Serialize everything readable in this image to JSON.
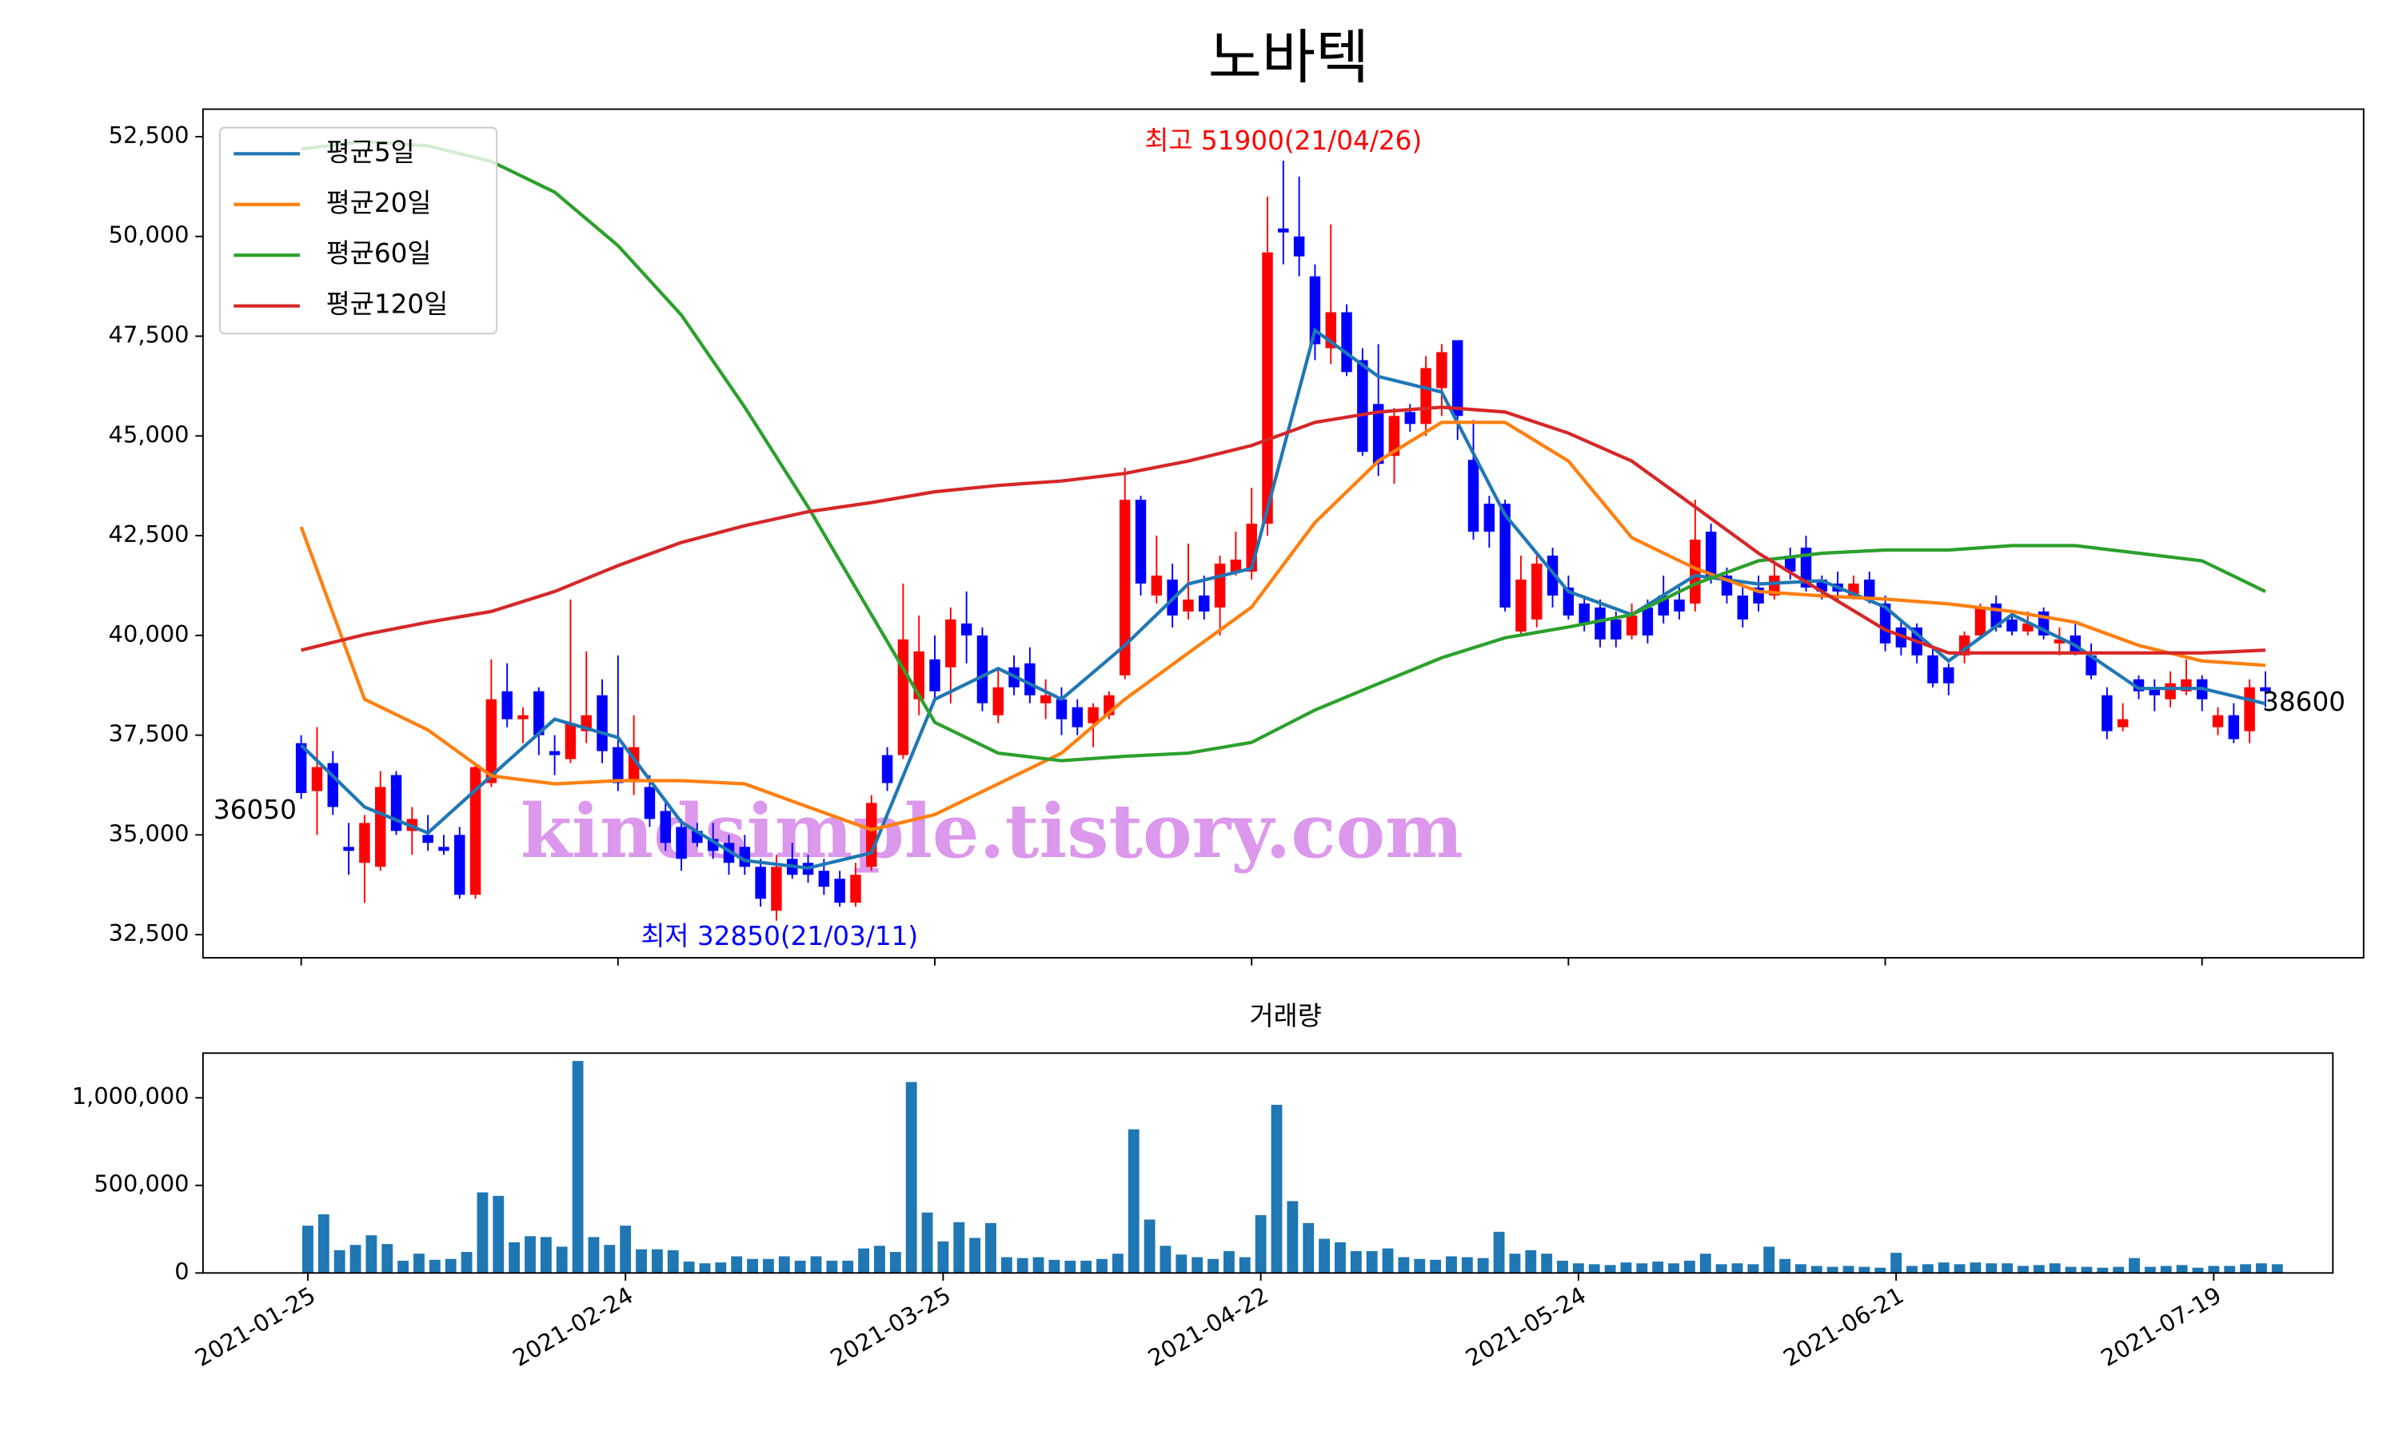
{
  "chart_data": [
    {
      "type": "candlestick",
      "title": "노바텍",
      "up_color": "#ff0000",
      "down_color": "#0000ff",
      "xlim": [
        -6.2,
        130.2
      ],
      "xticks": [
        0,
        20,
        40,
        60,
        80,
        100,
        120
      ],
      "ylim": [
        31920,
        53190
      ],
      "yticks": [
        {
          "value": 32500,
          "label": "32,500"
        },
        {
          "value": 35000,
          "label": "35,000"
        },
        {
          "value": 37500,
          "label": "37,500"
        },
        {
          "value": 40000,
          "label": "40,000"
        },
        {
          "value": 42500,
          "label": "42,500"
        },
        {
          "value": 45000,
          "label": "45,000"
        },
        {
          "value": 47500,
          "label": "47,500"
        },
        {
          "value": 50000,
          "label": "50,000"
        },
        {
          "value": 52500,
          "label": "52,500"
        }
      ],
      "open": [
        37300,
        36100,
        36800,
        34700,
        34300,
        34200,
        36500,
        35100,
        35000,
        34700,
        35000,
        33500,
        36300,
        38600,
        37900,
        38600,
        37100,
        36900,
        37600,
        38500,
        37200,
        36400,
        36200,
        35600,
        35200,
        35100,
        34900,
        34800,
        34700,
        34200,
        33100,
        34400,
        34300,
        34100,
        33900,
        33300,
        34200,
        37000,
        37000,
        38400,
        39400,
        39200,
        40300,
        40000,
        38000,
        39200,
        39300,
        38300,
        38400,
        38200,
        37800,
        38000,
        39000,
        43400,
        41000,
        41400,
        40600,
        41000,
        40700,
        41600,
        41600,
        42800,
        50200,
        50000,
        49000,
        47200,
        48100,
        46900,
        45800,
        44500,
        45600,
        45300,
        46200,
        47400,
        44400,
        43300,
        43300,
        40100,
        40400,
        42000,
        41200,
        40800,
        40700,
        40400,
        40000,
        40700,
        41000,
        40900,
        40800,
        42600,
        41500,
        41000,
        41200,
        41000,
        42000,
        42200,
        41400,
        41300,
        41000,
        41400,
        40800,
        40200,
        40200,
        39500,
        39200,
        39500,
        40000,
        40800,
        40400,
        40100,
        40600,
        39800,
        40000,
        39500,
        38500,
        37700,
        38900,
        38700,
        38400,
        38600,
        38900,
        37700,
        38000,
        37600,
        38700
      ],
      "high": [
        37500,
        37700,
        37100,
        35300,
        35500,
        36600,
        36600,
        35700,
        35500,
        35000,
        35200,
        36800,
        39400,
        39300,
        38200,
        38700,
        37500,
        40900,
        39600,
        38900,
        39500,
        38000,
        36500,
        35900,
        35400,
        35300,
        35300,
        35000,
        35000,
        34400,
        34500,
        34800,
        34500,
        34400,
        34100,
        34300,
        36000,
        37200,
        41300,
        40500,
        40000,
        40700,
        41100,
        40200,
        39200,
        39500,
        39700,
        38900,
        38700,
        38400,
        38300,
        38600,
        44200,
        43500,
        42500,
        41800,
        42300,
        41500,
        42000,
        42600,
        43700,
        51000,
        51900,
        51500,
        49300,
        50300,
        48300,
        47200,
        47300,
        45700,
        45800,
        47000,
        47300,
        47400,
        45400,
        43500,
        43400,
        42000,
        42000,
        42200,
        41500,
        41000,
        40900,
        40600,
        40800,
        40900,
        41500,
        41200,
        43400,
        42800,
        41700,
        41200,
        41500,
        41800,
        42200,
        42500,
        41500,
        41600,
        41500,
        41600,
        41000,
        40400,
        40300,
        39700,
        39300,
        40100,
        40800,
        41000,
        40600,
        40600,
        40700,
        40200,
        40300,
        39800,
        38700,
        38300,
        39000,
        38900,
        39100,
        39400,
        39000,
        38200,
        38300,
        38900,
        39100
      ],
      "low": [
        35900,
        35000,
        35500,
        34000,
        33300,
        34100,
        35000,
        34500,
        34600,
        34500,
        33400,
        33400,
        36200,
        37700,
        37300,
        37000,
        36500,
        36800,
        37300,
        36800,
        36100,
        36000,
        35200,
        34600,
        34100,
        34700,
        34400,
        34000,
        34000,
        33200,
        32850,
        33900,
        33800,
        33500,
        33200,
        33200,
        34100,
        36100,
        36900,
        38000,
        38400,
        38300,
        39300,
        38100,
        37800,
        38500,
        38300,
        37900,
        37500,
        37500,
        37200,
        37900,
        38900,
        41000,
        40800,
        40200,
        40400,
        40400,
        40000,
        41500,
        41400,
        42500,
        49300,
        49000,
        46900,
        46800,
        46500,
        44500,
        44000,
        43800,
        45100,
        45000,
        45500,
        44900,
        42400,
        42200,
        40600,
        40000,
        40200,
        40700,
        40400,
        40100,
        39700,
        39700,
        39900,
        39800,
        40300,
        40400,
        40600,
        41300,
        40800,
        40200,
        40600,
        40900,
        41400,
        41100,
        40900,
        40900,
        40900,
        40800,
        39600,
        39500,
        39300,
        38700,
        38500,
        39300,
        39900,
        40100,
        40000,
        40000,
        39900,
        39500,
        39500,
        38900,
        37400,
        37600,
        38400,
        38100,
        38200,
        38500,
        38100,
        37500,
        37300,
        37300,
        38200
      ],
      "close": [
        36050,
        36700,
        35700,
        34600,
        35300,
        36200,
        35100,
        35400,
        34800,
        34600,
        33500,
        36700,
        38400,
        37900,
        38000,
        37500,
        37000,
        37800,
        38000,
        37100,
        36300,
        37200,
        35400,
        34800,
        34400,
        34800,
        34600,
        34300,
        34200,
        33400,
        34200,
        34000,
        34000,
        33700,
        33300,
        34000,
        35800,
        36300,
        39900,
        39600,
        38600,
        40400,
        40000,
        38300,
        38700,
        38700,
        38500,
        38500,
        37900,
        37700,
        38200,
        38500,
        43400,
        41300,
        41500,
        40500,
        40900,
        40600,
        41800,
        41900,
        42800,
        49600,
        50100,
        49500,
        47300,
        48100,
        46600,
        44600,
        44300,
        45500,
        45300,
        46700,
        47100,
        45500,
        42600,
        42600,
        40700,
        41400,
        41800,
        41000,
        40500,
        40300,
        39900,
        39900,
        40500,
        40000,
        40500,
        40600,
        42400,
        41500,
        41000,
        40400,
        40800,
        41500,
        41600,
        41200,
        41100,
        41100,
        41300,
        40900,
        39800,
        39700,
        39500,
        38800,
        38800,
        40000,
        40700,
        40200,
        40100,
        40300,
        40000,
        39900,
        39600,
        39000,
        37600,
        37900,
        38600,
        38500,
        38800,
        38900,
        38400,
        38000,
        37400,
        38700,
        38600
      ],
      "series": [
        {
          "name": "평균5일",
          "color": "#1f77b4",
          "x": [
            0,
            4,
            8,
            12,
            16,
            20,
            24,
            28,
            32,
            36,
            40,
            44,
            48,
            52,
            56,
            60,
            64,
            68,
            72,
            76,
            80,
            84,
            88,
            92,
            96,
            100,
            104,
            108,
            112,
            116,
            120,
            124
          ],
          "values": [
            37250,
            35700,
            35050,
            36480,
            37900,
            37440,
            35320,
            34360,
            34170,
            34550,
            38400,
            39170,
            38400,
            39750,
            41290,
            41680,
            47650,
            46490,
            46100,
            43020,
            41100,
            40520,
            41500,
            41290,
            41370,
            40710,
            39360,
            40520,
            39750,
            38670,
            38670,
            38290
          ]
        },
        {
          "name": "평균20일",
          "color": "#ff7f0e",
          "x": [
            0,
            4,
            8,
            12,
            16,
            20,
            24,
            28,
            32,
            36,
            40,
            44,
            48,
            52,
            56,
            60,
            64,
            68,
            72,
            76,
            80,
            84,
            88,
            92,
            96,
            100,
            104,
            108,
            112,
            116,
            120,
            124
          ],
          "values": [
            42720,
            38400,
            37630,
            36480,
            36280,
            36360,
            36360,
            36280,
            35700,
            35130,
            35510,
            36280,
            37050,
            38400,
            39560,
            40710,
            42830,
            44370,
            45340,
            45340,
            44370,
            42450,
            41680,
            41100,
            40990,
            40910,
            40790,
            40600,
            40330,
            39750,
            39360,
            39250
          ]
        },
        {
          "name": "평균60일",
          "color": "#2ca02c",
          "x": [
            0,
            4,
            8,
            12,
            16,
            20,
            24,
            28,
            32,
            36,
            40,
            44,
            48,
            52,
            56,
            60,
            64,
            68,
            72,
            76,
            80,
            84,
            88,
            92,
            96,
            100,
            104,
            108,
            112,
            116,
            120,
            124
          ],
          "values": [
            52190,
            52380,
            52270,
            51880,
            51110,
            49770,
            48030,
            45720,
            43220,
            40520,
            37820,
            37050,
            36860,
            36970,
            37050,
            37320,
            38130,
            38790,
            39440,
            39940,
            40210,
            40520,
            41290,
            41870,
            42060,
            42140,
            42140,
            42250,
            42250,
            42060,
            41870,
            41100
          ]
        },
        {
          "name": "평균120일",
          "color": "#d62728",
          "x": [
            0,
            4,
            8,
            12,
            16,
            20,
            24,
            28,
            32,
            36,
            40,
            44,
            48,
            52,
            56,
            60,
            64,
            68,
            72,
            76,
            80,
            84,
            88,
            92,
            96,
            100,
            104,
            108,
            112,
            116,
            120,
            124
          ],
          "values": [
            39630,
            40020,
            40330,
            40600,
            41100,
            41750,
            42330,
            42750,
            43100,
            43330,
            43600,
            43760,
            43870,
            44060,
            44370,
            44760,
            45340,
            45600,
            45720,
            45600,
            45070,
            44370,
            43220,
            42060,
            41100,
            40140,
            39560,
            39560,
            39560,
            39560,
            39560,
            39630
          ]
        }
      ],
      "legend": "upper left",
      "annotations": [
        {
          "text": "최고 51900(21/04/26)",
          "color": "#ff0000"
        },
        {
          "text": "최저 32850(21/03/11)",
          "color": "#0000ff"
        },
        {
          "text": "36050",
          "color": "#000000"
        },
        {
          "text": "38600",
          "color": "#000000"
        }
      ],
      "watermark": "kindsimple.tistory.com"
    },
    {
      "type": "bar",
      "title": "거래량",
      "color": "#1f77b4",
      "xlim": [
        -6.6,
        127.5
      ],
      "xticks": [
        {
          "value": 0,
          "label": "2021-01-25"
        },
        {
          "value": 20,
          "label": "2021-02-24"
        },
        {
          "value": 40,
          "label": "2021-03-25"
        },
        {
          "value": 60,
          "label": "2021-04-22"
        },
        {
          "value": 80,
          "label": "2021-05-24"
        },
        {
          "value": 100,
          "label": "2021-06-21"
        },
        {
          "value": 120,
          "label": "2021-07-19"
        }
      ],
      "ylim": [
        0,
        1255000
      ],
      "yticks": [
        {
          "value": 0,
          "label": "0"
        },
        {
          "value": 500000,
          "label": "500,000"
        },
        {
          "value": 1000000,
          "label": "1,000,000"
        }
      ],
      "values": [
        270000,
        335000,
        130000,
        160000,
        215000,
        165000,
        70000,
        110000,
        75000,
        80000,
        120000,
        460000,
        440000,
        175000,
        210000,
        205000,
        150000,
        1210000,
        205000,
        160000,
        270000,
        135000,
        135000,
        130000,
        65000,
        55000,
        60000,
        95000,
        80000,
        80000,
        95000,
        70000,
        95000,
        70000,
        70000,
        140000,
        155000,
        120000,
        1090000,
        345000,
        180000,
        290000,
        200000,
        285000,
        90000,
        85000,
        90000,
        75000,
        70000,
        70000,
        80000,
        110000,
        820000,
        305000,
        155000,
        105000,
        90000,
        80000,
        125000,
        90000,
        330000,
        960000,
        410000,
        285000,
        195000,
        175000,
        125000,
        125000,
        140000,
        90000,
        80000,
        75000,
        95000,
        90000,
        85000,
        235000,
        110000,
        130000,
        110000,
        70000,
        55000,
        50000,
        45000,
        60000,
        55000,
        65000,
        55000,
        70000,
        110000,
        50000,
        55000,
        50000,
        150000,
        80000,
        50000,
        40000,
        35000,
        40000,
        35000,
        30000,
        115000,
        40000,
        50000,
        60000,
        50000,
        60000,
        55000,
        55000,
        40000,
        45000,
        55000,
        35000,
        35000,
        30000,
        35000,
        85000,
        35000,
        40000,
        45000,
        30000,
        40000,
        40000,
        50000,
        55000,
        50000
      ]
    }
  ]
}
